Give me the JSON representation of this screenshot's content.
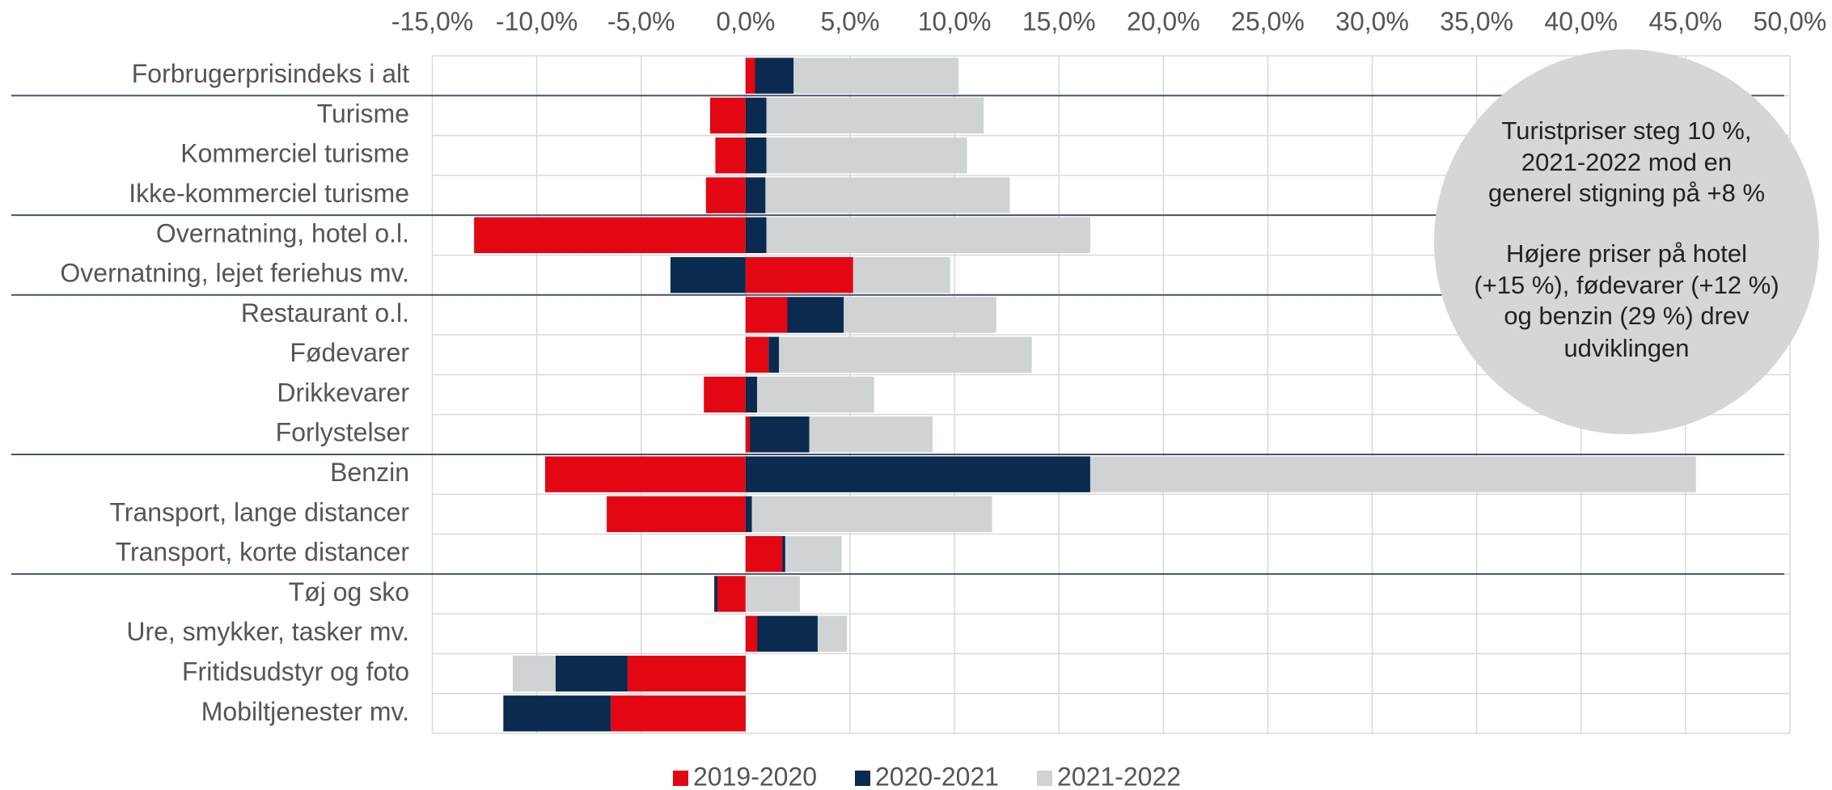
{
  "chart_data": {
    "type": "bar",
    "orientation": "horizontal",
    "stacked": true,
    "categories": [
      "Forbrugerprisindeks i alt",
      "Turisme",
      "Kommerciel turisme",
      "Ikke-kommerciel turisme",
      "Overnatning, hotel o.l.",
      "Overnatning, lejet feriehus mv.",
      "Restaurant o.l.",
      "Fødevarer",
      "Drikkevarer",
      "Forlystelser",
      "Benzin",
      "Transport, lange distancer",
      "Transport, korte distancer",
      "Tøj og sko",
      "Ure, smykker, tasker mv.",
      "Fritidsudstyr og foto",
      "Mobiltjenester mv."
    ],
    "series": [
      {
        "name": "2019-2020",
        "color": "#e30613",
        "values": [
          0.45,
          -1.7,
          -1.45,
          -1.9,
          -13.0,
          5.15,
          2.0,
          1.1,
          -2.0,
          0.2,
          -9.6,
          -6.65,
          1.75,
          -1.35,
          0.55,
          -5.65,
          -6.45
        ]
      },
      {
        "name": "2020-2021",
        "color": "#0a2a4f",
        "values": [
          1.85,
          1.0,
          1.0,
          0.95,
          1.0,
          -3.6,
          2.7,
          0.5,
          0.55,
          2.85,
          16.5,
          0.3,
          0.15,
          -0.15,
          2.9,
          -3.45,
          -5.15
        ]
      },
      {
        "name": "2021-2022",
        "color": "#d0d3d4",
        "values": [
          7.9,
          10.4,
          9.6,
          11.7,
          15.5,
          4.65,
          7.3,
          12.1,
          5.6,
          5.9,
          29.0,
          11.5,
          2.7,
          2.6,
          1.4,
          -2.05,
          0
        ]
      }
    ],
    "xlim": [
      -15,
      50
    ],
    "xticks": [
      {
        "value": -15,
        "label": "-15,0%"
      },
      {
        "value": -10,
        "label": "-10,0%"
      },
      {
        "value": -5,
        "label": "-5,0%"
      },
      {
        "value": 0,
        "label": "0,0%"
      },
      {
        "value": 5,
        "label": "5,0%"
      },
      {
        "value": 10,
        "label": "10,0%"
      },
      {
        "value": 15,
        "label": "15,0%"
      },
      {
        "value": 20,
        "label": "20,0%"
      },
      {
        "value": 25,
        "label": "25,0%"
      },
      {
        "value": 30,
        "label": "30,0%"
      },
      {
        "value": 35,
        "label": "35,0%"
      },
      {
        "value": 40,
        "label": "40,0%"
      },
      {
        "value": 45,
        "label": "45,0%"
      },
      {
        "value": 50,
        "label": "50,0%"
      }
    ],
    "grid": true,
    "legend": "bottom",
    "annotation": [
      "Turistpriser steg 10 %,",
      "2021-2022 mod en",
      "generel stigning på +8 %",
      "Højere priser på hotel",
      "(+15 %), fødevarer (+12 %)",
      "og benzin (29 %) drev",
      "udviklingen"
    ]
  }
}
